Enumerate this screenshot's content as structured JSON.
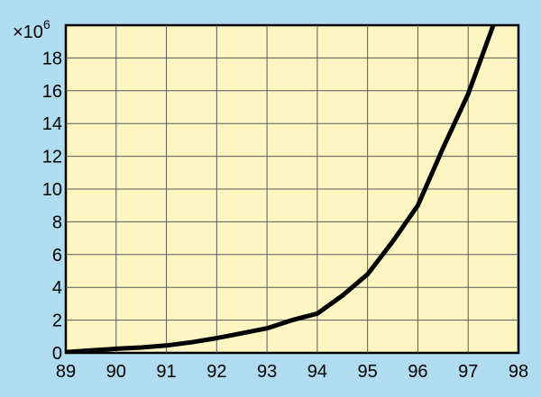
{
  "chart_data": {
    "type": "line",
    "title": "",
    "xlabel": "",
    "ylabel": "",
    "y_multiplier_label": "×10",
    "y_multiplier_exponent": "6",
    "xlim": [
      89,
      98
    ],
    "ylim": [
      0,
      20
    ],
    "x_ticks": [
      "89",
      "90",
      "91",
      "92",
      "93",
      "94",
      "95",
      "96",
      "97",
      "98"
    ],
    "y_ticks": [
      "0",
      "2",
      "4",
      "6",
      "8",
      "10",
      "12",
      "14",
      "16",
      "18"
    ],
    "grid": true,
    "colors": {
      "background": "#b0dcf0",
      "plot_background": "#fdf6c3",
      "line": "#000000",
      "grid": "#5a5a5a"
    },
    "series": [
      {
        "x": [
          89.0,
          89.5,
          90.0,
          90.5,
          91.0,
          91.5,
          92.0,
          92.5,
          93.0,
          93.5,
          94.0,
          94.5,
          95.0,
          95.5,
          96.0,
          96.5,
          97.0,
          97.5
        ],
        "y": [
          0.05,
          0.15,
          0.25,
          0.33,
          0.45,
          0.65,
          0.9,
          1.2,
          1.5,
          2.0,
          2.4,
          3.5,
          4.8,
          6.8,
          9.0,
          12.5,
          15.8,
          20.0
        ]
      }
    ]
  }
}
